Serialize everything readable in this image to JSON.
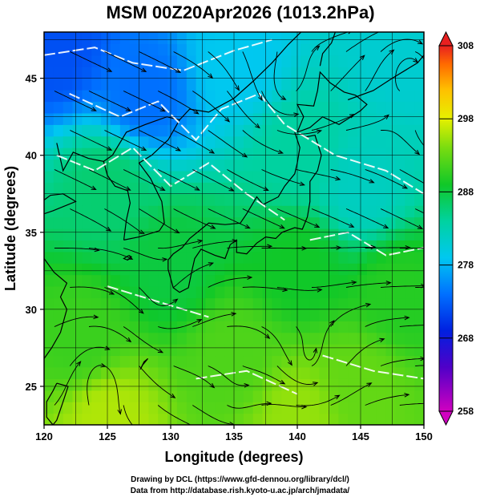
{
  "chart_data": {
    "type": "heatmap",
    "title": "MSM 00Z20Apr2026 (1013.2hPa)",
    "xlabel": "Longitude (degrees)",
    "ylabel": "Latitude  (degrees)",
    "xlim": [
      120,
      150
    ],
    "ylim": [
      22.5,
      48
    ],
    "x_ticks": [
      120,
      125,
      130,
      135,
      140,
      145,
      150
    ],
    "y_ticks": [
      25,
      30,
      35,
      40,
      45
    ],
    "grid": true,
    "colorbar": {
      "range": [
        258,
        308
      ],
      "ticks": [
        258,
        268,
        278,
        288,
        298,
        308
      ],
      "placement": "right"
    },
    "temperature_samples": [
      {
        "lon": 121,
        "lat": 47,
        "value": 272
      },
      {
        "lon": 128,
        "lat": 44,
        "value": 274
      },
      {
        "lon": 135,
        "lat": 46,
        "value": 279
      },
      {
        "lon": 148,
        "lat": 47,
        "value": 281
      },
      {
        "lon": 140,
        "lat": 40,
        "value": 284
      },
      {
        "lon": 125,
        "lat": 38,
        "value": 286
      },
      {
        "lon": 145,
        "lat": 38,
        "value": 282
      },
      {
        "lon": 130,
        "lat": 33,
        "value": 288
      },
      {
        "lon": 140,
        "lat": 33,
        "value": 289
      },
      {
        "lon": 148,
        "lat": 31,
        "value": 290
      },
      {
        "lon": 123,
        "lat": 28,
        "value": 291
      },
      {
        "lon": 135,
        "lat": 27,
        "value": 292
      },
      {
        "lon": 145,
        "lat": 25,
        "value": 293
      },
      {
        "lon": 125,
        "lat": 23,
        "value": 296
      },
      {
        "lon": 140,
        "lat": 23,
        "value": 295
      }
    ]
  },
  "credits": {
    "line1": "Drawing by DCL (https://www.gfd-dennou.org/library/dcl/)",
    "line2": "Data from http://database.rish.kyoto-u.ac.jp/arch/jmadata/"
  }
}
